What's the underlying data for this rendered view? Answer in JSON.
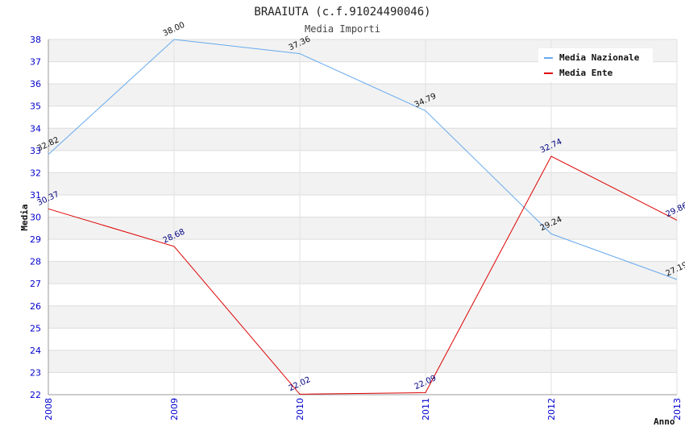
{
  "chart_data": {
    "type": "line",
    "title": "BRAAIUTA (c.f.91024490046)",
    "subtitle": "Media Importi",
    "xlabel": "Anno",
    "ylabel": "Media",
    "categories": [
      "2008",
      "2009",
      "2010",
      "2011",
      "2012",
      "2013"
    ],
    "ylim": [
      22,
      38
    ],
    "yticks": [
      "22",
      "23",
      "24",
      "25",
      "26",
      "27",
      "28",
      "29",
      "30",
      "31",
      "32",
      "33",
      "34",
      "35",
      "36",
      "37",
      "38"
    ],
    "grid": true,
    "legend_position": "top-right",
    "series": [
      {
        "name": "Media Nazionale",
        "color": "#66aaee",
        "label_color": "#111111",
        "values": [
          32.82,
          38.0,
          37.36,
          34.79,
          29.24,
          27.19
        ],
        "labels": [
          "32.82",
          "38.00",
          "37.36",
          "34.79",
          "29.24",
          "27.19"
        ]
      },
      {
        "name": "Media Ente",
        "color": "#dd0000",
        "label_color": "#000080",
        "values": [
          30.37,
          28.68,
          22.02,
          22.09,
          32.74,
          29.86
        ],
        "labels": [
          "30.37",
          "28.68",
          "22.02",
          "22.09",
          "32.74",
          "29.86"
        ]
      }
    ]
  }
}
